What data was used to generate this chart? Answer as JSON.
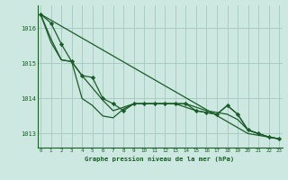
{
  "background_color": "#cce8e0",
  "grid_color": "#aaccc4",
  "line_color": "#1a5c28",
  "marker_color": "#1a5c28",
  "title": "Graphe pression niveau de la mer (hPa)",
  "ylim": [
    1012.6,
    1016.65
  ],
  "yticks": [
    1013,
    1014,
    1015,
    1016
  ],
  "xticks": [
    0,
    1,
    2,
    3,
    4,
    5,
    6,
    7,
    8,
    9,
    10,
    11,
    12,
    13,
    14,
    15,
    16,
    17,
    18,
    19,
    20,
    21,
    22,
    23
  ],
  "series_straight": [
    1016.4,
    1016.23,
    1016.06,
    1015.89,
    1015.72,
    1015.55,
    1015.38,
    1015.21,
    1015.04,
    1014.87,
    1014.7,
    1014.53,
    1014.36,
    1014.19,
    1014.02,
    1013.85,
    1013.68,
    1013.51,
    1013.34,
    1013.17,
    1013.0,
    1012.95,
    1012.9,
    1012.85
  ],
  "series_curve1": [
    1016.4,
    1015.7,
    1015.1,
    1015.05,
    1014.65,
    1014.3,
    1013.95,
    1013.65,
    1013.75,
    1013.85,
    1013.85,
    1013.85,
    1013.85,
    1013.85,
    1013.85,
    1013.75,
    1013.65,
    1013.6,
    1013.55,
    1013.4,
    1013.1,
    1013.0,
    1012.9,
    1012.85
  ],
  "series_curve2": [
    1016.4,
    1015.6,
    1015.1,
    1015.05,
    1014.0,
    1013.8,
    1013.5,
    1013.45,
    1013.7,
    1013.85,
    1013.85,
    1013.85,
    1013.85,
    1013.85,
    1013.75,
    1013.65,
    1013.6,
    1013.55,
    1013.8,
    1013.55,
    1013.1,
    1013.0,
    1012.9,
    1012.85
  ],
  "series_main_x": [
    0,
    1,
    2,
    3,
    4,
    5,
    6,
    7,
    8,
    9,
    10,
    11,
    12,
    13,
    14,
    15,
    16,
    17,
    18,
    19,
    20,
    21,
    22,
    23
  ],
  "series_main": [
    1016.4,
    1016.15,
    1015.55,
    1015.05,
    1014.65,
    1014.6,
    1014.0,
    1013.85,
    1013.65,
    1013.85,
    1013.85,
    1013.85,
    1013.85,
    1013.85,
    1013.85,
    1013.65,
    1013.6,
    1013.55,
    1013.8,
    1013.55,
    1013.1,
    1013.0,
    1012.9,
    1012.85
  ]
}
